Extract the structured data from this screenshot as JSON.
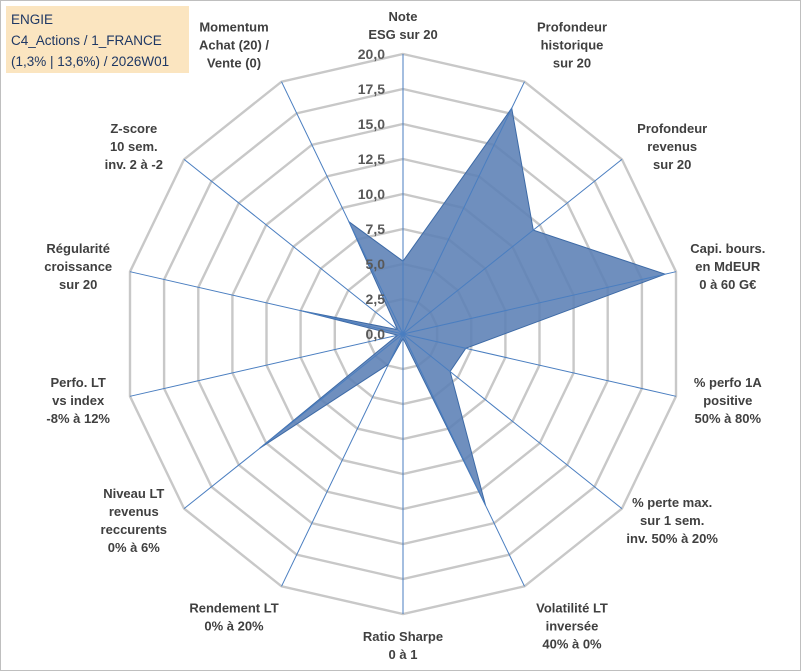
{
  "chart_data": {
    "type": "radar",
    "title_box": {
      "line1": "ENGIE",
      "line2": "C4_Actions / 1_FRANCE",
      "line3": "(1,3% | 13,6%) / 2026W01"
    },
    "rmin": 0,
    "rmax": 20,
    "ticks": [
      "0,0",
      "2,5",
      "5,0",
      "7,5",
      "10,0",
      "12,5",
      "15,0",
      "17,5",
      "20,0"
    ],
    "axes": [
      [
        "Note",
        "ESG sur 20"
      ],
      [
        "Profondeur",
        "historique",
        "sur 20"
      ],
      [
        "Profondeur",
        "revenus",
        "sur 20"
      ],
      [
        "Capi. bours.",
        "en MdEUR",
        "0 à 60 G€"
      ],
      [
        "% perfo 1A",
        "positive",
        "50% à 80%"
      ],
      [
        "% perte max.",
        "sur 1 sem.",
        "inv. 50% à 20%"
      ],
      [
        "Volatilité LT",
        "inversée",
        "40% à 0%"
      ],
      [
        "Ratio Sharpe",
        "0 à 1"
      ],
      [
        "Rendement LT",
        "0% à 20%"
      ],
      [
        "Niveau LT",
        "revenus",
        "reccurents",
        "0% à 6%"
      ],
      [
        "Perfo. LT",
        "vs index",
        "-8% à 12%"
      ],
      [
        "Régularité",
        "croissance",
        "sur 20"
      ],
      [
        "Z-score",
        "10 sem.",
        "inv. 2 à -2"
      ],
      [
        "Momentum",
        "Achat (20) /",
        "Vente (0)"
      ]
    ],
    "series": [
      {
        "name": "ENGIE",
        "values": [
          5.2,
          17.9,
          11.9,
          19.2,
          4.6,
          4.3,
          13.6,
          0.3,
          2.4,
          13.1,
          0.4,
          7.5,
          0.5,
          8.9
        ]
      }
    ],
    "colors": {
      "fill": "#5b7fb5",
      "stroke": "#3d6aa6",
      "grid": "#c8c8c8",
      "spoke": "#4a7ec0"
    }
  }
}
